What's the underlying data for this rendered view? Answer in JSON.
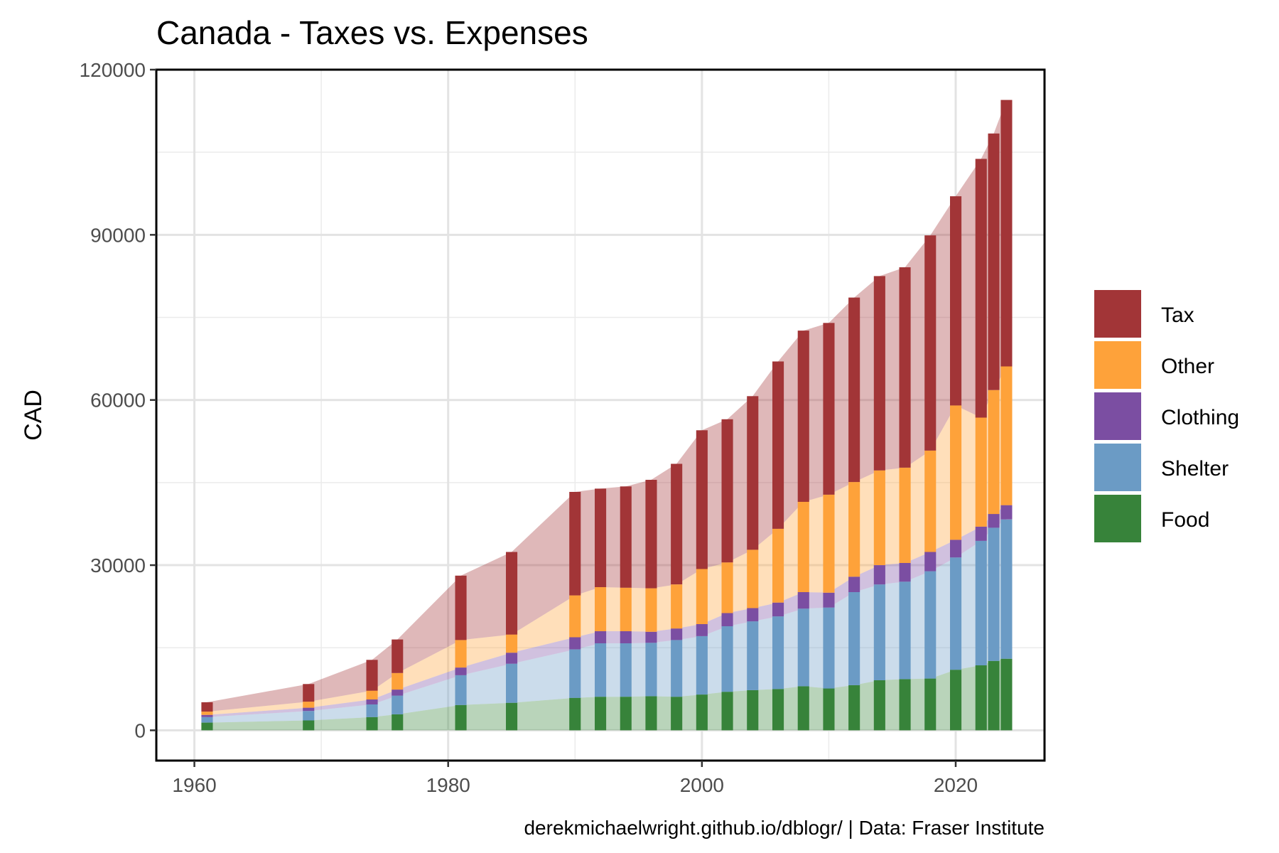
{
  "chart_data": {
    "type": "bar",
    "title": "Canada - Taxes vs. Expenses",
    "xlabel": "",
    "ylabel": "CAD",
    "caption": "derekmichaelwright.github.io/dblogr/ | Data: Fraser Institute",
    "xlim": [
      1957,
      2027
    ],
    "ylim": [
      -5500,
      120000
    ],
    "x_ticks": [
      1960,
      1980,
      2000,
      2020
    ],
    "y_ticks": [
      0,
      30000,
      60000,
      90000,
      120000
    ],
    "grid": true,
    "stacked": true,
    "shaded_area_behind_bars": true,
    "legend": {
      "position": "right",
      "order": [
        "Tax",
        "Other",
        "Clothing",
        "Shelter",
        "Food"
      ]
    },
    "x": [
      1961,
      1969,
      1974,
      1976,
      1981,
      1985,
      1990,
      1992,
      1994,
      1996,
      1998,
      2000,
      2002,
      2004,
      2006,
      2008,
      2010,
      2012,
      2014,
      2016,
      2018,
      2020,
      2022,
      2023,
      2024
    ],
    "series": [
      {
        "name": "Food",
        "color": "#37833a",
        "values": [
          1400,
          1800,
          2400,
          2900,
          4600,
          5000,
          5900,
          6100,
          6100,
          6200,
          6100,
          6500,
          7000,
          7300,
          7500,
          8000,
          7600,
          8200,
          9100,
          9300,
          9400,
          11000,
          11800,
          12600,
          13000
        ]
      },
      {
        "name": "Shelter",
        "color": "#6b9bc5",
        "values": [
          1000,
          1700,
          2300,
          3400,
          5400,
          7100,
          8800,
          9700,
          9700,
          9700,
          10300,
          10600,
          11900,
          12500,
          13200,
          14100,
          14700,
          16900,
          17400,
          17700,
          19500,
          20400,
          22600,
          24200,
          25300
        ]
      },
      {
        "name": "Clothing",
        "color": "#7b4ea2",
        "values": [
          400,
          600,
          900,
          1100,
          1400,
          2000,
          2200,
          2200,
          2200,
          2000,
          2100,
          2200,
          2400,
          2400,
          2500,
          3000,
          2700,
          2800,
          3500,
          3400,
          3500,
          3200,
          2600,
          2500,
          2600
        ]
      },
      {
        "name": "Other",
        "color": "#fea23a",
        "values": [
          600,
          1100,
          1600,
          3000,
          5000,
          3300,
          7600,
          8000,
          7900,
          7900,
          8000,
          10000,
          9200,
          10600,
          13400,
          16400,
          17800,
          17200,
          17200,
          17300,
          18400,
          24400,
          19800,
          22500,
          25200
        ]
      },
      {
        "name": "Tax",
        "color": "#a23537",
        "values": [
          1700,
          3200,
          5600,
          6100,
          11700,
          15000,
          18800,
          17900,
          18400,
          19700,
          21900,
          25200,
          26000,
          27900,
          30400,
          31100,
          31200,
          33500,
          35300,
          36400,
          39100,
          38000,
          47000,
          46600,
          48400
        ]
      }
    ]
  }
}
